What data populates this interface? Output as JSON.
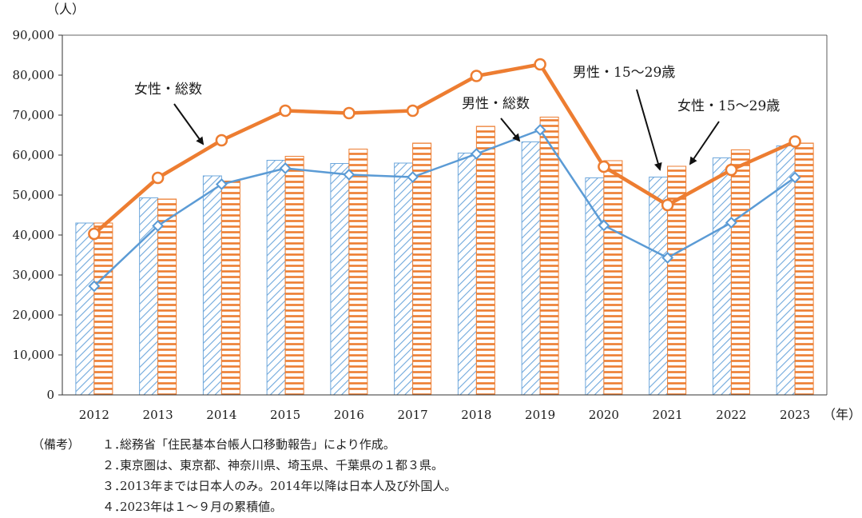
{
  "chart_data": {
    "type": "bar",
    "y_unit_label": "（人）",
    "x_unit_label": "（年）",
    "ylim": [
      0,
      90000
    ],
    "yticks": [
      0,
      10000,
      20000,
      30000,
      40000,
      50000,
      60000,
      70000,
      80000,
      90000
    ],
    "ytick_labels": [
      "0",
      "10,000",
      "20,000",
      "30,000",
      "40,000",
      "50,000",
      "60,000",
      "70,000",
      "80,000",
      "90,000"
    ],
    "categories": [
      "2012",
      "2013",
      "2014",
      "2015",
      "2016",
      "2017",
      "2018",
      "2019",
      "2020",
      "2021",
      "2022",
      "2023"
    ],
    "bar_series": [
      {
        "name": "男性・15〜29歳",
        "color": "#5B9BD5",
        "pattern": "diagonal-hatch",
        "values": [
          43000,
          49300,
          54800,
          58700,
          57900,
          58000,
          60500,
          63300,
          54300,
          54500,
          59300,
          62300
        ]
      },
      {
        "name": "女性・15〜29歳",
        "color": "#ED7D31",
        "pattern": "horizontal-stripes",
        "values": [
          43000,
          49000,
          53500,
          59700,
          61500,
          63000,
          67200,
          69500,
          58600,
          57200,
          61300,
          63000
        ]
      }
    ],
    "line_series": [
      {
        "name": "女性・総数",
        "color": "#ED7D31",
        "marker": "circle",
        "values": [
          40300,
          54300,
          63700,
          71100,
          70500,
          71100,
          79800,
          82700,
          57100,
          47500,
          56300,
          63400
        ]
      },
      {
        "name": "男性・総数",
        "color": "#5B9BD5",
        "marker": "diamond",
        "values": [
          27200,
          42300,
          52700,
          56700,
          55100,
          54500,
          60300,
          66300,
          42400,
          34300,
          43100,
          54400
        ]
      }
    ],
    "annotations": [
      "女性・総数",
      "男性・総数",
      "男性・15〜29歳",
      "女性・15〜29歳"
    ],
    "grid": false,
    "legend": "none"
  },
  "notes": {
    "heading": "（備考）",
    "items": [
      {
        "num": "１．",
        "text": "総務省「住民基本台帳人口移動報告」により作成。"
      },
      {
        "num": "２．",
        "text": "東京圏は、東京都、神奈川県、埼玉県、千葉県の１都３県。"
      },
      {
        "num": "３．",
        "text": "2013年までは日本人のみ。2014年以降は日本人及び外国人。"
      },
      {
        "num": "４．",
        "text": "2023年は１〜９月の累積値。"
      }
    ]
  }
}
